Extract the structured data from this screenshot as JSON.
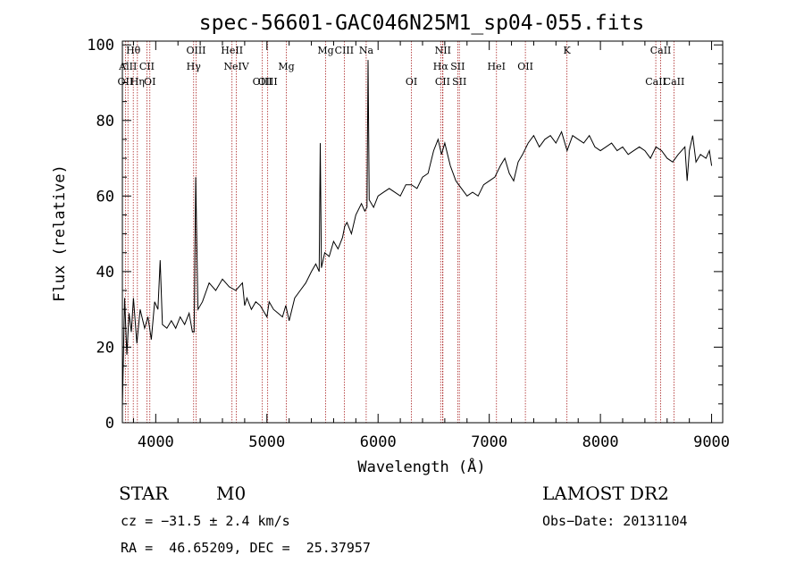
{
  "chart_data": {
    "type": "line",
    "title": "spec-56601-GAC046N25M1_sp04-055.fits",
    "xlabel": "Wavelength (Å)",
    "ylabel": "Flux (relative)",
    "xlim": [
      3700,
      9100
    ],
    "ylim": [
      0,
      101
    ],
    "xticks": [
      4000,
      5000,
      6000,
      7000,
      8000,
      9000
    ],
    "yticks": [
      0,
      20,
      40,
      60,
      80,
      100
    ],
    "grid": false,
    "line_color": "#000000",
    "marker_color": "#aa2222",
    "series": [
      {
        "x": [
          3700,
          3720,
          3740,
          3760,
          3780,
          3800,
          3830,
          3860,
          3900,
          3930,
          3960,
          3990,
          4020,
          4040,
          4060,
          4100,
          4140,
          4180,
          4220,
          4260,
          4300,
          4330,
          4345,
          4360,
          4380,
          4420,
          4480,
          4540,
          4600,
          4660,
          4720,
          4780,
          4800,
          4820,
          4860,
          4900,
          4940,
          4980,
          5000,
          5020,
          5060,
          5100,
          5140,
          5170,
          5200,
          5250,
          5300,
          5350,
          5400,
          5440,
          5470,
          5480,
          5490,
          5520,
          5560,
          5600,
          5640,
          5680,
          5700,
          5720,
          5760,
          5800,
          5850,
          5880,
          5900,
          5910,
          5920,
          5960,
          6000,
          6050,
          6100,
          6150,
          6200,
          6250,
          6300,
          6350,
          6400,
          6450,
          6500,
          6540,
          6570,
          6600,
          6650,
          6700,
          6750,
          6800,
          6850,
          6900,
          6950,
          7000,
          7050,
          7100,
          7140,
          7180,
          7220,
          7260,
          7300,
          7350,
          7400,
          7450,
          7500,
          7550,
          7600,
          7650,
          7700,
          7750,
          7800,
          7850,
          7900,
          7950,
          8000,
          8050,
          8100,
          8150,
          8200,
          8250,
          8300,
          8350,
          8400,
          8450,
          8500,
          8550,
          8600,
          8650,
          8700,
          8730,
          8760,
          8780,
          8800,
          8830,
          8860,
          8900,
          8950,
          8980,
          9000
        ],
        "y": [
          4,
          33,
          18,
          29,
          24,
          33,
          21,
          30,
          25,
          28,
          22,
          32,
          30,
          43,
          26,
          25,
          27,
          25,
          28,
          26,
          29,
          24,
          24,
          65,
          30,
          32,
          37,
          35,
          38,
          36,
          35,
          37,
          31,
          33,
          30,
          32,
          31,
          29,
          28,
          32,
          30,
          29,
          28,
          31,
          27,
          33,
          35,
          37,
          40,
          42,
          40,
          74,
          41,
          45,
          44,
          48,
          46,
          49,
          52,
          53,
          50,
          55,
          58,
          56,
          57,
          96,
          59,
          57,
          60,
          61,
          62,
          61,
          60,
          63,
          63,
          62,
          65,
          66,
          72,
          75,
          71,
          74,
          68,
          64,
          62,
          60,
          61,
          60,
          63,
          64,
          65,
          68,
          70,
          66,
          64,
          69,
          71,
          74,
          76,
          73,
          75,
          76,
          74,
          77,
          72,
          76,
          75,
          74,
          76,
          73,
          72,
          73,
          74,
          72,
          73,
          71,
          72,
          73,
          72,
          70,
          73,
          72,
          70,
          69,
          71,
          72,
          73,
          64,
          72,
          76,
          69,
          71,
          70,
          72,
          68
        ]
      }
    ],
    "lines": [
      {
        "label": "Hθ",
        "x": 3798,
        "row": 0
      },
      {
        "label": "AlII",
        "x": 3750,
        "row": 1
      },
      {
        "label": "CII",
        "x": 3920,
        "row": 1
      },
      {
        "label": "OII",
        "x": 3727,
        "row": 2
      },
      {
        "label": "Hη",
        "x": 3835,
        "row": 2
      },
      {
        "label": "OI",
        "x": 3947,
        "row": 2
      },
      {
        "label": "OIII",
        "x": 4363,
        "row": 0
      },
      {
        "label": "Hγ",
        "x": 4341,
        "row": 1
      },
      {
        "label": "HeII",
        "x": 4686,
        "row": 0
      },
      {
        "label": "NeIV",
        "x": 4725,
        "row": 1
      },
      {
        "label": "OIII",
        "x": 4959,
        "row": 2
      },
      {
        "label": "OIII",
        "x": 5007,
        "row": 2
      },
      {
        "label": "Mg",
        "x": 5175,
        "row": 1
      },
      {
        "label": "Mg",
        "x": 5528,
        "row": 0
      },
      {
        "label": "CIII",
        "x": 5696,
        "row": 0
      },
      {
        "label": "Na",
        "x": 5893,
        "row": 0
      },
      {
        "label": "NII",
        "x": 6583,
        "row": 0
      },
      {
        "label": "Hα",
        "x": 6563,
        "row": 1
      },
      {
        "label": "SII",
        "x": 6716,
        "row": 1
      },
      {
        "label": "OI",
        "x": 6300,
        "row": 2
      },
      {
        "label": "SII",
        "x": 6731,
        "row": 2
      },
      {
        "label": "CII",
        "x": 6580,
        "row": 2
      },
      {
        "label": "OII",
        "x": 7325,
        "row": 1
      },
      {
        "label": "K",
        "x": 7699,
        "row": 0
      },
      {
        "label": "HeI",
        "x": 7065,
        "row": 1
      },
      {
        "label": "CaII",
        "x": 8542,
        "row": 0
      },
      {
        "label": "CaII",
        "x": 8498,
        "row": 2
      },
      {
        "label": "CaII",
        "x": 8662,
        "row": 2
      }
    ]
  },
  "info": {
    "object_class": "STAR",
    "subclass": "M0",
    "survey": "LAMOST DR2",
    "redshift": "cz = −31.5 ± 2.4 km/s",
    "obs_date": "Obs−Date: 20131104",
    "coords": "RA =  46.65209, DEC =  25.37957"
  }
}
